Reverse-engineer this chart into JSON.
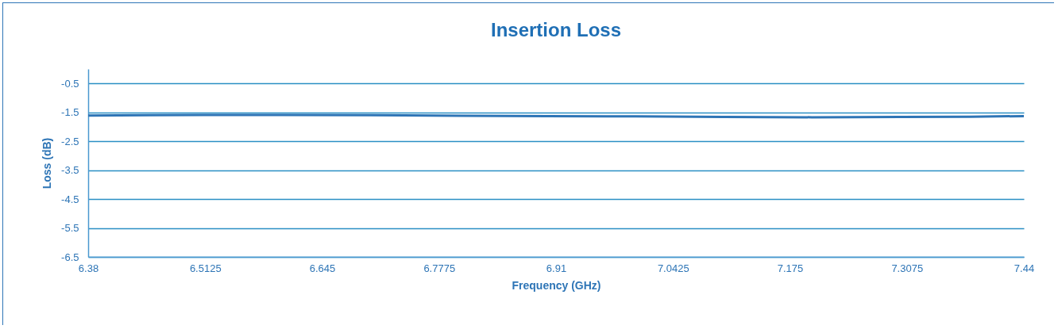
{
  "chart_data": {
    "type": "line",
    "title": "Insertion Loss",
    "xlabel": "Frequency (GHz)",
    "ylabel": "Loss (dB)",
    "x": [
      6.38,
      6.45,
      6.52,
      6.6,
      6.7,
      6.8,
      6.9,
      7.0,
      7.1,
      7.2,
      7.3,
      7.38,
      7.44
    ],
    "series": [
      {
        "color": "#2e75b6",
        "values": [
          -1.61,
          -1.6,
          -1.59,
          -1.59,
          -1.6,
          -1.62,
          -1.63,
          -1.64,
          -1.66,
          -1.67,
          -1.66,
          -1.65,
          -1.63
        ]
      }
    ],
    "xlim": [
      6.38,
      7.44
    ],
    "xticks": [
      6.38,
      6.5125,
      6.645,
      6.7775,
      6.91,
      7.0425,
      7.175,
      7.3075,
      7.44
    ],
    "ylim": [
      -6.5,
      0
    ],
    "yticks": [
      -6.5,
      -5.5,
      -4.5,
      -3.5,
      -2.5,
      -1.5,
      -0.5
    ],
    "grid": "y",
    "marker": "none",
    "line_style": "solid"
  }
}
